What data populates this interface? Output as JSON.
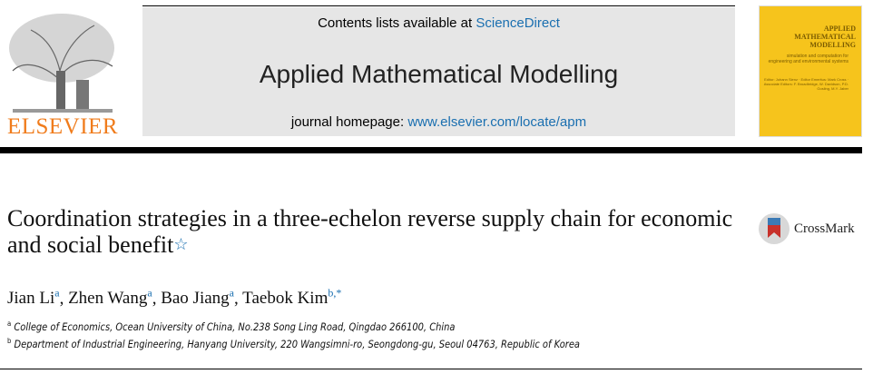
{
  "header": {
    "contents_prefix": "Contents lists available at ",
    "contents_link": "ScienceDirect",
    "journal_title": "Applied Mathematical Modelling",
    "homepage_prefix": "journal homepage: ",
    "homepage_link": "www.elsevier.com/locate/apm",
    "publisher_logo": "ELSEVIER",
    "cover": {
      "title": "APPLIED MATHEMATICAL MODELLING",
      "subtitle": "simulation and computation for engineering and environmental systems",
      "editors": "Editor: Johann Sienz · Editor Emeritus: Mark Cross · Associate Editors: F. Broadbridge, W. Davidson, P.D. Gosling, M.Y. Jaber",
      "color": "#f6c41c"
    }
  },
  "article": {
    "title": "Coordination strategies in a three-echelon reverse supply chain for economic and social benefit",
    "title_note": "☆",
    "crossmark": "CrossMark",
    "authors": [
      {
        "name": "Jian Li",
        "aff": "a"
      },
      {
        "name": "Zhen Wang",
        "aff": "a"
      },
      {
        "name": "Bao Jiang",
        "aff": "a"
      },
      {
        "name": "Taebok Kim",
        "aff": "b,*"
      }
    ],
    "affiliations": [
      {
        "label": "a",
        "text": "College of Economics, Ocean University of China, No.238 Song Ling Road, Qingdao 266100, China"
      },
      {
        "label": "b",
        "text": "Department of Industrial Engineering, Hanyang University, 220 Wangsimni-ro, Seongdong-gu, Seoul 04763, Republic of Korea"
      }
    ]
  }
}
